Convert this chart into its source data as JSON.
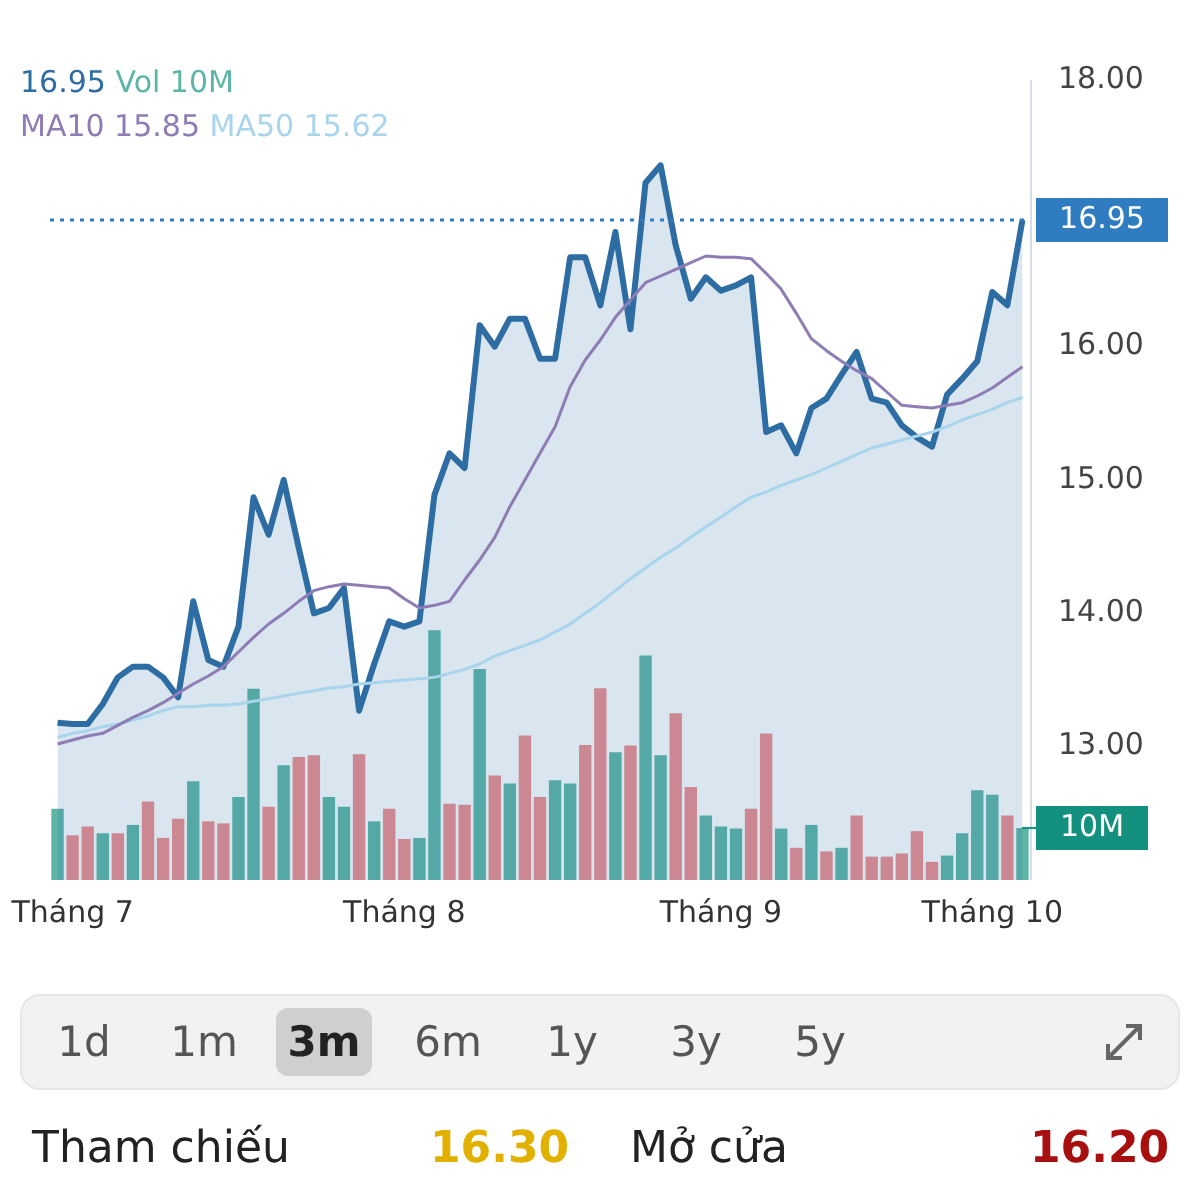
{
  "chart_data": {
    "type": "area",
    "legend": "top left",
    "grid": false,
    "categories": [
      null,
      "Tháng 7",
      null,
      null,
      null,
      null,
      null,
      null,
      null,
      null,
      null,
      null,
      null,
      null,
      null,
      null,
      null,
      null,
      null,
      null,
      null,
      null,
      null,
      "Tháng 8",
      null,
      null,
      null,
      null,
      null,
      null,
      null,
      null,
      null,
      null,
      null,
      null,
      null,
      null,
      null,
      null,
      null,
      null,
      null,
      null,
      "Tháng 9",
      null,
      null,
      null,
      null,
      null,
      null,
      null,
      null,
      null,
      null,
      null,
      null,
      null,
      null,
      null,
      null,
      null,
      "Tháng 10",
      null,
      null
    ],
    "ylim": [
      12,
      18
    ],
    "yticks": [
      {
        "value": 13,
        "label": "13.00"
      },
      {
        "value": 14,
        "label": "14.00"
      },
      {
        "value": 15,
        "label": "15.00"
      },
      {
        "value": 16,
        "label": "16.00"
      },
      {
        "value": 18,
        "label": "18.00"
      }
    ],
    "y2lim": [
      0,
      154
    ],
    "y2ticks": [
      {
        "value": 10,
        "label": "10M"
      }
    ],
    "ref_lines": [
      {
        "axis": "y",
        "value": 16.95,
        "label": "16.95",
        "color": "#2f7dc0",
        "line_style": "dotted"
      }
    ],
    "series": [
      {
        "color": "#2e6da4",
        "values": [
          13.18,
          13.17,
          13.17,
          13.32,
          13.52,
          13.6,
          13.6,
          13.52,
          13.37,
          14.09,
          13.65,
          13.6,
          13.9,
          14.87,
          14.59,
          15.0,
          14.49,
          14.0,
          14.04,
          14.19,
          13.27,
          13.62,
          13.94,
          13.9,
          13.94,
          14.89,
          15.2,
          15.09,
          16.16,
          16.0,
          16.21,
          16.21,
          15.91,
          15.91,
          16.67,
          16.67,
          16.31,
          16.86,
          16.13,
          17.23,
          17.36,
          16.76,
          16.36,
          16.52,
          16.42,
          16.46,
          16.52,
          15.36,
          15.41,
          15.2,
          15.54,
          15.61,
          15.79,
          15.96,
          15.61,
          15.58,
          15.41,
          15.32,
          15.25,
          15.64,
          15.76,
          15.89,
          16.41,
          16.31,
          16.95
        ]
      },
      {
        "type": "line",
        "name": "MA10 15.85",
        "color": "#8e7cb5",
        "values": [
          13.02,
          13.05,
          13.08,
          13.1,
          13.16,
          13.22,
          13.27,
          13.33,
          13.4,
          13.47,
          13.53,
          13.6,
          13.71,
          13.82,
          13.92,
          14.0,
          14.09,
          14.17,
          14.2,
          14.22,
          14.21,
          14.2,
          14.19,
          14.11,
          14.04,
          14.06,
          14.09,
          14.25,
          14.4,
          14.57,
          14.8,
          15.0,
          15.2,
          15.4,
          15.7,
          15.9,
          16.05,
          16.22,
          16.35,
          16.48,
          16.53,
          16.58,
          16.63,
          16.68,
          16.67,
          16.67,
          16.66,
          16.55,
          16.43,
          16.25,
          16.06,
          15.97,
          15.89,
          15.82,
          15.76,
          15.66,
          15.56,
          15.55,
          15.54,
          15.56,
          15.58,
          15.63,
          15.69,
          15.77,
          15.85
        ]
      },
      {
        "type": "line",
        "name": "MA50 15.62",
        "color": "#a8d4ec",
        "values": [
          13.07,
          13.1,
          13.12,
          13.15,
          13.17,
          13.2,
          13.23,
          13.27,
          13.3,
          13.3,
          13.31,
          13.31,
          13.32,
          13.34,
          13.36,
          13.38,
          13.4,
          13.42,
          13.44,
          13.45,
          13.47,
          13.48,
          13.49,
          13.5,
          13.51,
          13.52,
          13.55,
          13.58,
          13.62,
          13.68,
          13.72,
          13.76,
          13.8,
          13.86,
          13.92,
          14.0,
          14.08,
          14.17,
          14.26,
          14.34,
          14.42,
          14.49,
          14.57,
          14.65,
          14.72,
          14.8,
          14.87,
          14.91,
          14.96,
          15.0,
          15.04,
          15.09,
          15.14,
          15.19,
          15.24,
          15.27,
          15.3,
          15.33,
          15.36,
          15.4,
          15.45,
          15.49,
          15.53,
          15.58,
          15.62
        ]
      },
      {
        "type": "bar",
        "name": "Vol 10M",
        "color": "#5db5a6",
        "axis": "y2",
        "values": [
          13.7,
          8.6,
          10.3,
          9.0,
          9.0,
          10.6,
          15.1,
          8.1,
          11.8,
          19.0,
          11.3,
          10.9,
          16.0,
          36.8,
          14.1,
          22.1,
          23.7,
          24.0,
          16.0,
          14.1,
          24.2,
          11.3,
          13.7,
          7.9,
          8.1,
          48.1,
          14.7,
          14.5,
          40.6,
          20.1,
          18.6,
          27.8,
          16.0,
          19.2,
          18.6,
          26.0,
          36.9,
          24.6,
          25.9,
          43.2,
          24.0,
          32.1,
          17.9,
          12.4,
          10.3,
          9.9,
          13.7,
          28.2,
          9.9,
          6.2,
          10.6,
          5.5,
          6.2,
          12.4,
          4.5,
          4.5,
          5.1,
          9.4,
          3.5,
          4.7,
          9.0,
          17.3,
          16.4,
          12.4,
          10.0
        ],
        "colors": [
          "#5db5a6",
          "#ef8e8e",
          "#ef8e8e",
          "#5db5a6",
          "#ef8e8e",
          "#5db5a6",
          "#ef8e8e",
          "#ef8e8e",
          "#ef8e8e",
          "#5db5a6",
          "#ef8e8e",
          "#ef8e8e",
          "#5db5a6",
          "#5db5a6",
          "#ef8e8e",
          "#5db5a6",
          "#ef8e8e",
          "#ef8e8e",
          "#5db5a6",
          "#5db5a6",
          "#ef8e8e",
          "#5db5a6",
          "#ef8e8e",
          "#ef8e8e",
          "#5db5a6",
          "#5db5a6",
          "#ef8e8e",
          "#ef8e8e",
          "#5db5a6",
          "#ef8e8e",
          "#5db5a6",
          "#ef8e8e",
          "#ef8e8e",
          "#5db5a6",
          "#5db5a6",
          "#ef8e8e",
          "#ef8e8e",
          "#5db5a6",
          "#ef8e8e",
          "#5db5a6",
          "#5db5a6",
          "#ef8e8e",
          "#ef8e8e",
          "#5db5a6",
          "#5db5a6",
          "#5db5a6",
          "#ef8e8e",
          "#ef8e8e",
          "#5db5a6",
          "#ef8e8e",
          "#5db5a6",
          "#ef8e8e",
          "#5db5a6",
          "#ef8e8e",
          "#ef8e8e",
          "#ef8e8e",
          "#ef8e8e",
          "#ef8e8e",
          "#ef8e8e",
          "#5db5a6",
          "#5db5a6",
          "#5db5a6",
          "#5db5a6",
          "#ef8e8e",
          "#5db5a6"
        ]
      }
    ],
    "annotations": [
      "16.95",
      "1d",
      "1m",
      "3m",
      "6m",
      "1y",
      "3y",
      "5y",
      "Tham chiếu",
      "16.30",
      "Mở cửa",
      "16.20"
    ]
  }
}
